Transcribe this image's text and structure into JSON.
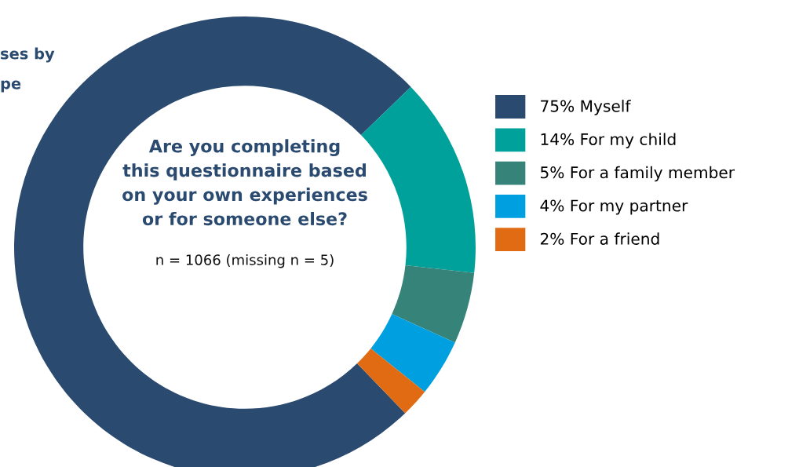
{
  "chart_data": {
    "type": "donut",
    "title": "Are you completing\nthis questionnaire based\non your own experiences\nor for someone else?",
    "subtitle": "n = 1066 (missing n = 5)",
    "annotations": [
      "ses by",
      "pe"
    ],
    "categories": [
      "75% Myself",
      "14% For my child",
      "5% For a family member",
      "4% For my partner",
      "2% For a friend"
    ],
    "values": [
      75,
      14,
      5,
      4,
      2
    ],
    "colors": [
      "#2b4a6f",
      "#00a19a",
      "#36837a",
      "#00a0e0",
      "#e06b12"
    ],
    "legend": "right"
  }
}
